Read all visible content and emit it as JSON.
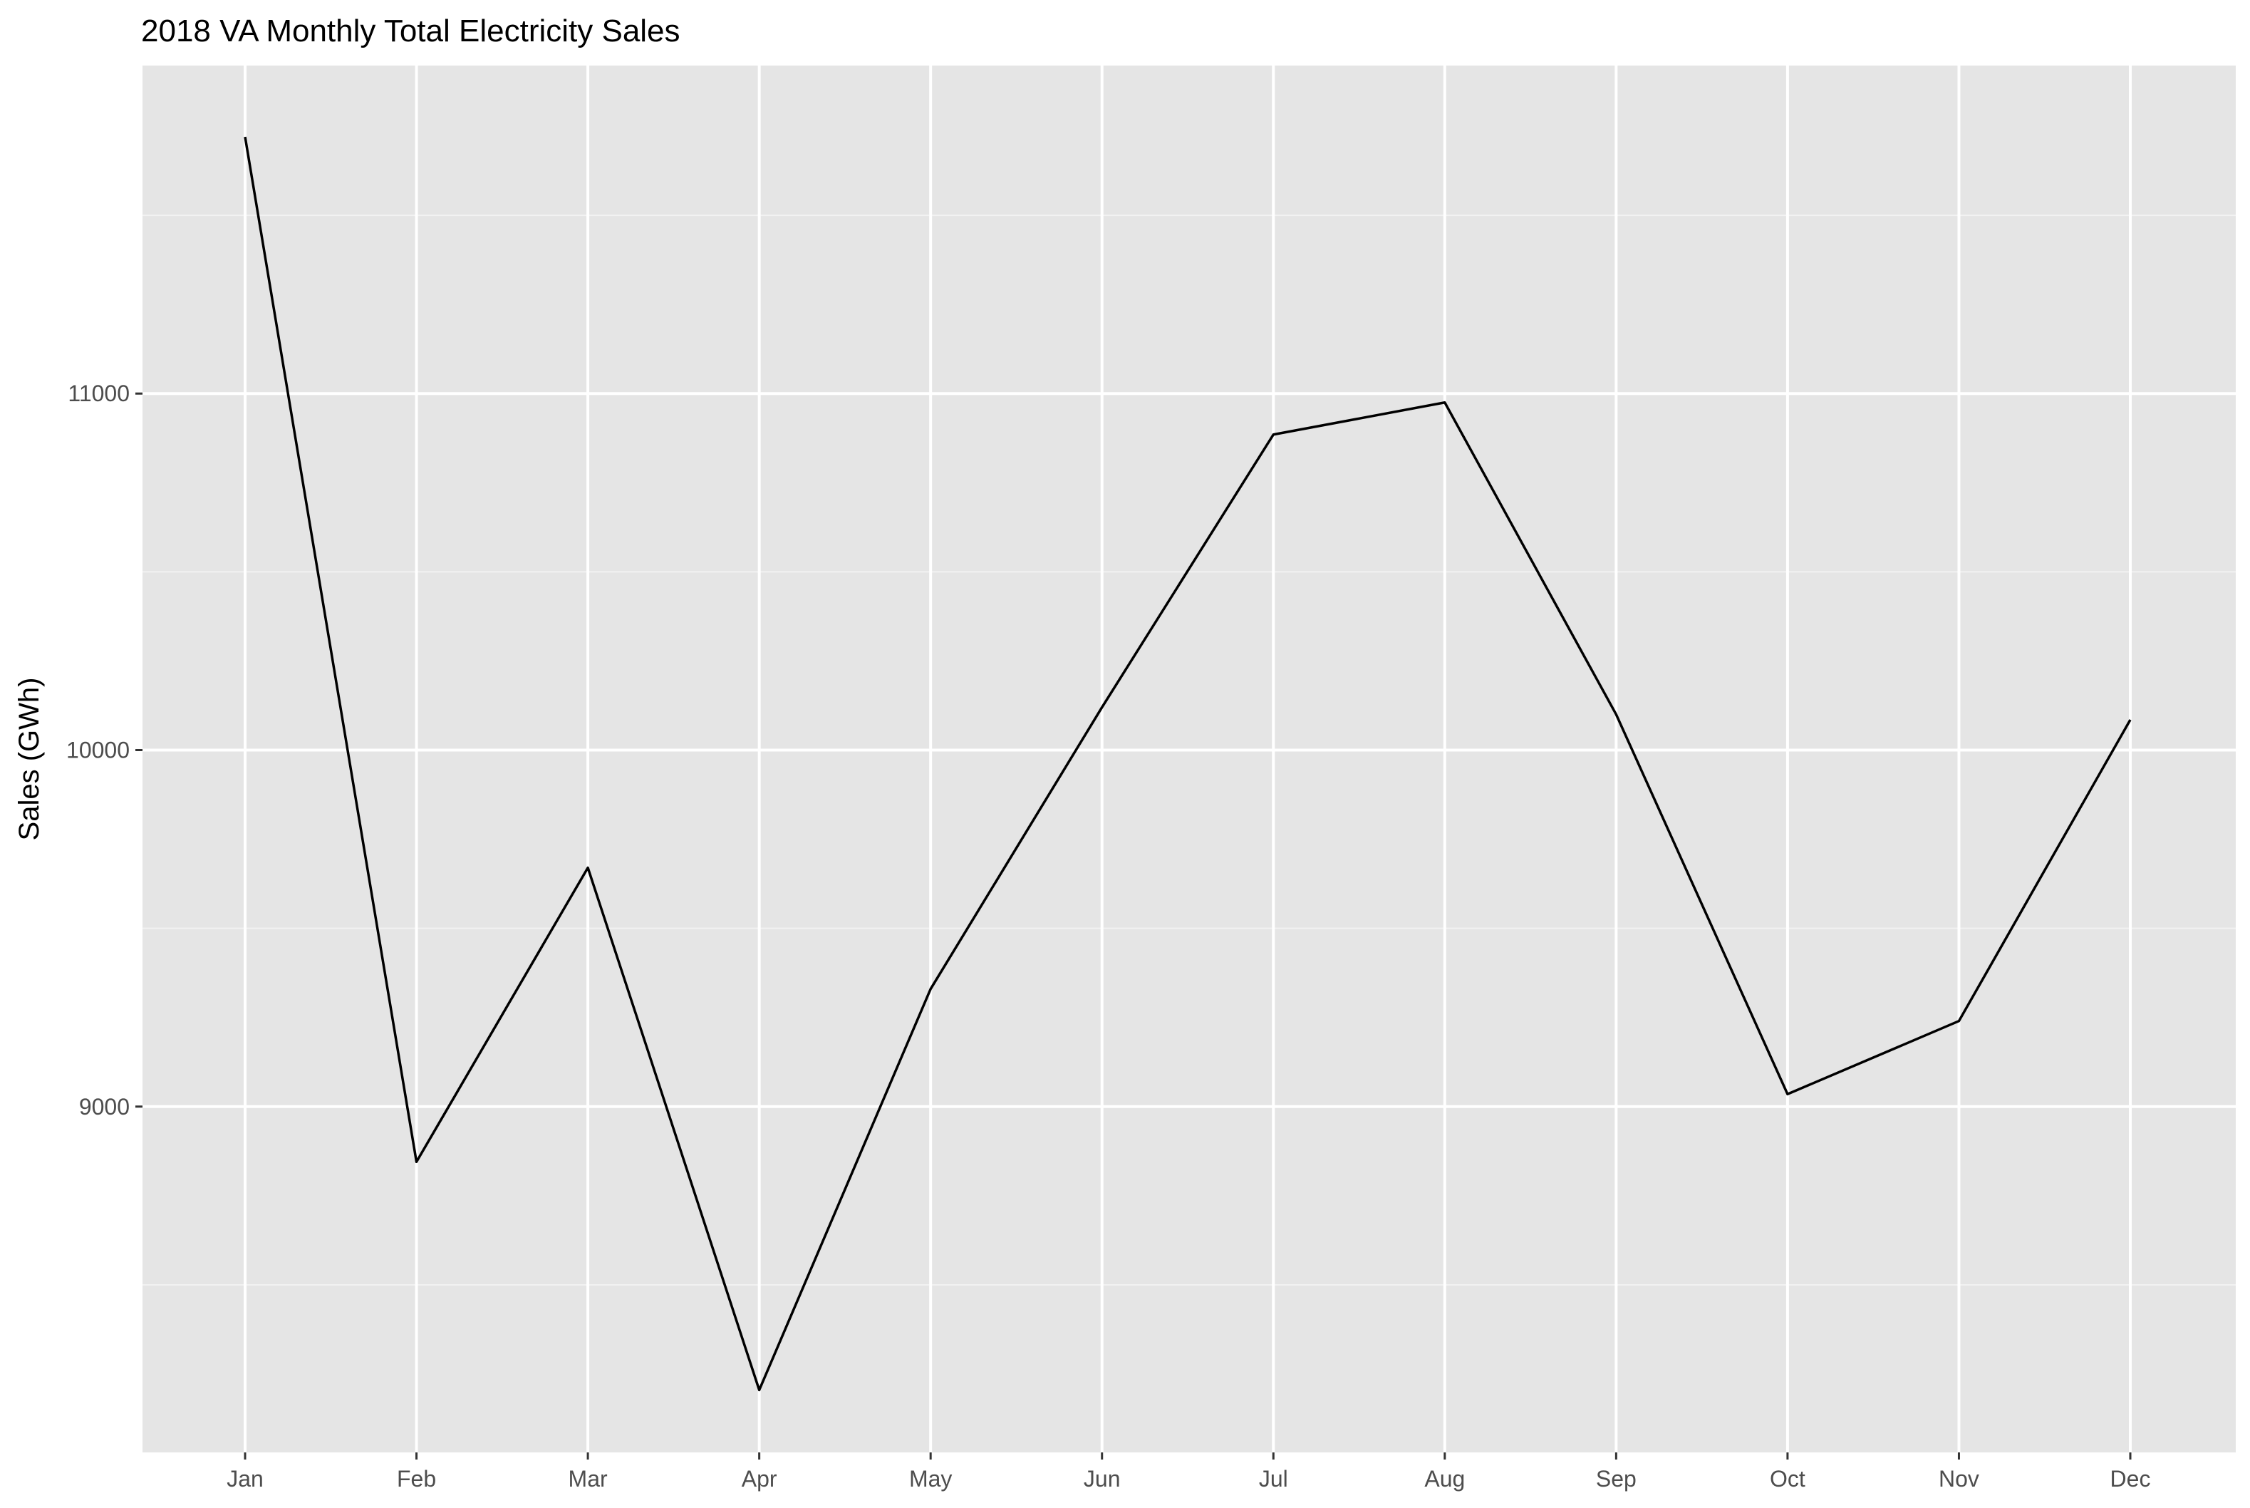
{
  "chart_data": {
    "type": "line",
    "title": "2018 VA Monthly Total Electricity Sales",
    "xlabel": "",
    "ylabel": "Sales (GWh)",
    "categories": [
      "Jan",
      "Feb",
      "Mar",
      "Apr",
      "May",
      "Jun",
      "Jul",
      "Aug",
      "Sep",
      "Oct",
      "Nov",
      "Dec"
    ],
    "values": [
      11720,
      8845,
      9670,
      8205,
      9330,
      10120,
      10885,
      10975,
      10100,
      9035,
      9240,
      10085
    ],
    "ylim": [
      8030,
      11920
    ],
    "yticks": [
      9000,
      10000,
      11000
    ],
    "ytick_labels": [
      "9000",
      "10000",
      "11000"
    ],
    "grid": true,
    "legend": "none",
    "colors": {
      "panel_bg": "#e5e5e5",
      "grid_major": "#ffffff",
      "grid_minor": "#f2f2f2",
      "line": "#000000",
      "tick_text": "#4d4d4d",
      "tick_mark": "#333333",
      "title_text": "#000000"
    }
  }
}
